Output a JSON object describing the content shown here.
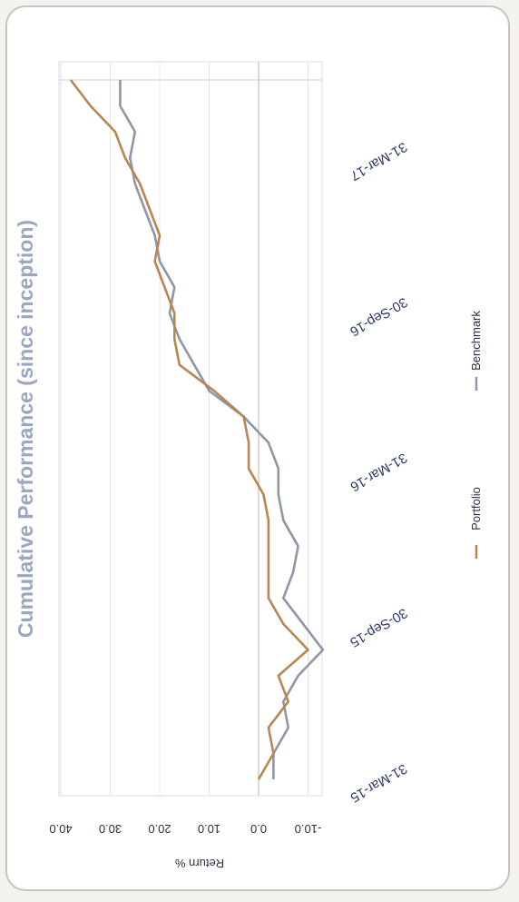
{
  "chart_data": {
    "type": "line",
    "title": "Cumulative Performance (since inception)",
    "ylabel": "Return %",
    "xlabel": "",
    "ylim": [
      -12,
      40
    ],
    "yticks": [
      40,
      30,
      20,
      10,
      0,
      -10
    ],
    "ytick_labels": [
      "40.0",
      "30.0",
      "20.0",
      "10.0",
      "0.0",
      "-10.0"
    ],
    "xtick_labels": [
      "31-Mar-15",
      "30-Sep-15",
      "31-Mar-16",
      "30-Sep-16",
      "31-Mar-17"
    ],
    "xtick_index": [
      0,
      6,
      12,
      18,
      24
    ],
    "n_points": 28,
    "grid": true,
    "legend_position": "bottom",
    "series": [
      {
        "name": "Portfolio",
        "color": "#b8874f",
        "values": [
          0.0,
          -3.0,
          -2.0,
          -6.0,
          -4.0,
          -10.0,
          -5.0,
          -2.0,
          -2.0,
          -2.0,
          -2.0,
          -1.0,
          2.0,
          2.0,
          3.0,
          9.0,
          16.0,
          17.0,
          17.0,
          19.0,
          21.0,
          20.0,
          22.0,
          24.0,
          27.0,
          29.0,
          34.0,
          38.0
        ]
      },
      {
        "name": "Benchmark",
        "color": "#8e97a6",
        "values": [
          -3.0,
          -3.0,
          -6.0,
          -5.0,
          -8.0,
          -13.0,
          -9.0,
          -5.0,
          -7.0,
          -8.0,
          -5.0,
          -4.0,
          -4.0,
          -2.0,
          3.0,
          10.0,
          13.0,
          16.0,
          18.0,
          17.0,
          20.0,
          21.0,
          23.0,
          25.0,
          26.0,
          25.0,
          28.0,
          28.0
        ]
      }
    ]
  }
}
